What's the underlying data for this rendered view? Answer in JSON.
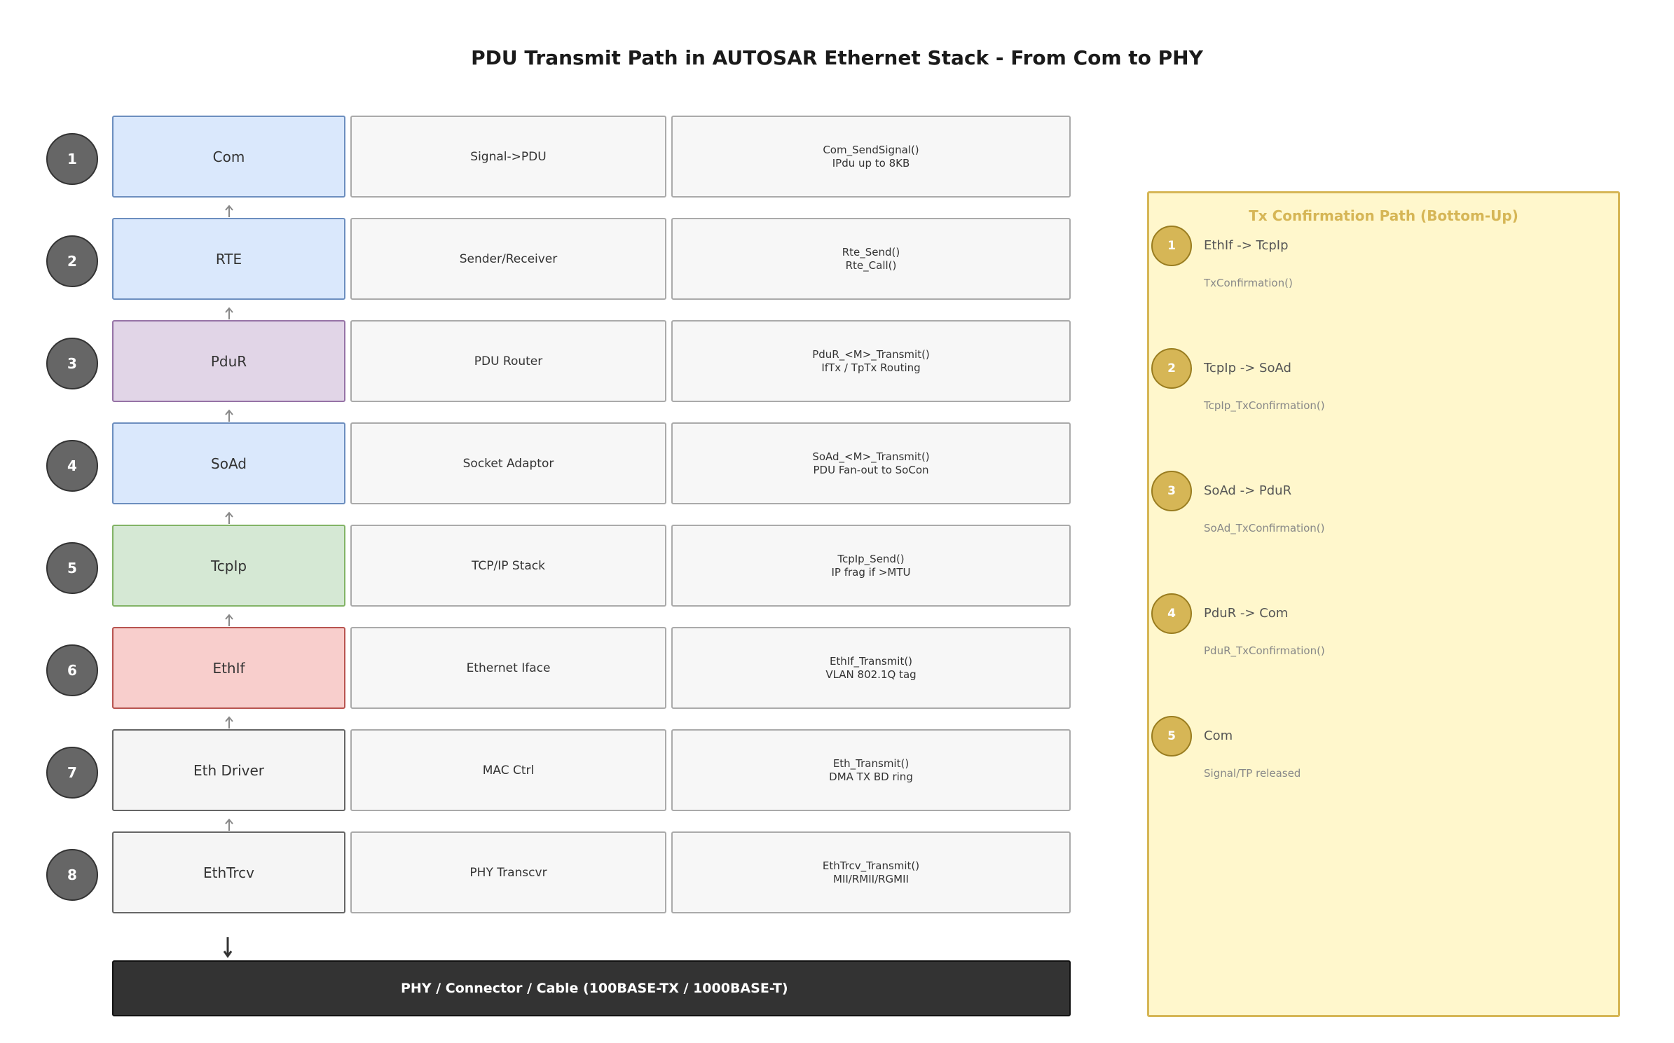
{
  "title": "PDU Transmit Path in AUTOSAR Ethernet Stack - From Com to PHY",
  "layers": [
    {
      "num": "1",
      "name": "Com",
      "role": "Signal->PDU",
      "api1": "Com_SendSignal()",
      "api2": "IPdu up to 8KB",
      "fill": "#dae8fc",
      "stroke": "#6c8ebf"
    },
    {
      "num": "2",
      "name": "RTE",
      "role": "Sender/Receiver",
      "api1": "Rte_Send()",
      "api2": "Rte_Call()",
      "fill": "#dae8fc",
      "stroke": "#6c8ebf"
    },
    {
      "num": "3",
      "name": "PduR",
      "role": "PDU Router",
      "api1": "PduR_<M>_Transmit()",
      "api2": "IfTx / TpTx Routing",
      "fill": "#e1d5e7",
      "stroke": "#9673a6"
    },
    {
      "num": "4",
      "name": "SoAd",
      "role": "Socket Adaptor",
      "api1": "SoAd_<M>_Transmit()",
      "api2": "PDU Fan-out to SoCon",
      "fill": "#dae8fc",
      "stroke": "#6c8ebf"
    },
    {
      "num": "5",
      "name": "TcpIp",
      "role": "TCP/IP Stack",
      "api1": "TcpIp_Send()",
      "api2": "IP frag if >MTU",
      "fill": "#d5e8d4",
      "stroke": "#82b366"
    },
    {
      "num": "6",
      "name": "EthIf",
      "role": "Ethernet Iface",
      "api1": "EthIf_Transmit()",
      "api2": "VLAN 802.1Q tag",
      "fill": "#f8cecc",
      "stroke": "#b85450"
    },
    {
      "num": "7",
      "name": "Eth Driver",
      "role": "MAC Ctrl",
      "api1": "Eth_Transmit()",
      "api2": "DMA TX BD ring",
      "fill": "#f5f5f5",
      "stroke": "#666666"
    },
    {
      "num": "8",
      "name": "EthTrcv",
      "role": "PHY Transcvr",
      "api1": "EthTrcv_Transmit()",
      "api2": "MII/RMII/RGMII",
      "fill": "#f5f5f5",
      "stroke": "#666666"
    }
  ],
  "phy_label": "PHY / Connector / Cable (100BASE-TX / 1000BASE-T)",
  "confirmation": {
    "title": "Tx Confirmation Path (Bottom-Up)",
    "steps": [
      {
        "num": "1",
        "label": "EthIf -> TcpIp",
        "sub": "TxConfirmation()"
      },
      {
        "num": "2",
        "label": "TcpIp -> SoAd",
        "sub": "TcpIp_TxConfirmation()"
      },
      {
        "num": "3",
        "label": "SoAd -> PduR",
        "sub": "SoAd_TxConfirmation()"
      },
      {
        "num": "4",
        "label": "PduR -> Com",
        "sub": "PduR_TxConfirmation()"
      },
      {
        "num": "5",
        "label": "Com",
        "sub": "Signal/TP released"
      }
    ]
  },
  "colors": {
    "number_badge": "#666666",
    "phy_bar": "#333333",
    "confirmation_fill": "#fff7cc",
    "confirmation_accent": "#d6b656"
  }
}
